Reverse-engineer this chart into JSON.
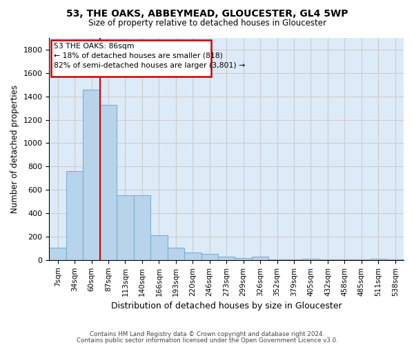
{
  "title": "53, THE OAKS, ABBEYMEAD, GLOUCESTER, GL4 5WP",
  "subtitle": "Size of property relative to detached houses in Gloucester",
  "xlabel": "Distribution of detached houses by size in Gloucester",
  "ylabel": "Number of detached properties",
  "footnote1": "Contains HM Land Registry data © Crown copyright and database right 2024.",
  "footnote2": "Contains public sector information licensed under the Open Government Licence v3.0.",
  "bar_labels": [
    "7sqm",
    "34sqm",
    "60sqm",
    "87sqm",
    "113sqm",
    "140sqm",
    "166sqm",
    "193sqm",
    "220sqm",
    "246sqm",
    "273sqm",
    "299sqm",
    "326sqm",
    "352sqm",
    "379sqm",
    "405sqm",
    "432sqm",
    "458sqm",
    "485sqm",
    "511sqm",
    "538sqm"
  ],
  "bar_values": [
    105,
    760,
    1460,
    1330,
    555,
    555,
    210,
    105,
    65,
    55,
    30,
    15,
    30,
    5,
    5,
    10,
    5,
    5,
    5,
    10,
    5
  ],
  "bar_color": "#b8d4ea",
  "bar_edge_color": "#7aafd4",
  "annotation_line1": "53 THE OAKS: 86sqm",
  "annotation_line2": "← 18% of detached houses are smaller (818)",
  "annotation_line3": "82% of semi-detached houses are larger (3,801) →",
  "annotation_box_color": "#ffffff",
  "annotation_box_edge": "#cc0000",
  "vline_color": "#cc0000",
  "vline_x_index": 3,
  "ylim": [
    0,
    1900
  ],
  "yticks": [
    0,
    200,
    400,
    600,
    800,
    1000,
    1200,
    1400,
    1600,
    1800
  ],
  "grid_color": "#cccccc",
  "plot_background": "#ddeaf7"
}
